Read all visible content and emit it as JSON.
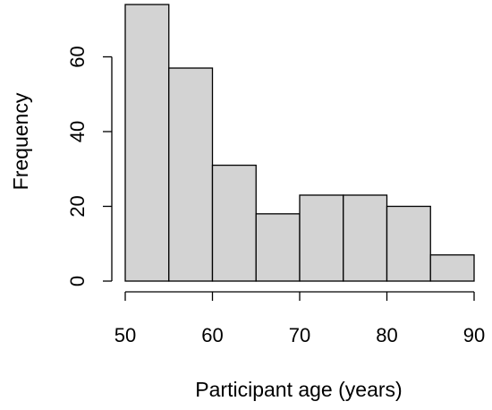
{
  "chart_data": {
    "type": "bar",
    "subtype": "histogram",
    "title": "",
    "xlabel": "Participant age (years)",
    "ylabel": "Frequency",
    "bins": [
      {
        "from": 50,
        "to": 55,
        "value": 74
      },
      {
        "from": 55,
        "to": 60,
        "value": 57
      },
      {
        "from": 60,
        "to": 65,
        "value": 31
      },
      {
        "from": 65,
        "to": 70,
        "value": 18
      },
      {
        "from": 70,
        "to": 75,
        "value": 23
      },
      {
        "from": 75,
        "to": 80,
        "value": 23
      },
      {
        "from": 80,
        "to": 85,
        "value": 20
      },
      {
        "from": 85,
        "to": 90,
        "value": 7
      }
    ],
    "xlim": [
      50,
      90
    ],
    "ylim": [
      0,
      75
    ],
    "x_ticks": [
      50,
      60,
      70,
      80,
      90
    ],
    "y_ticks": [
      0,
      20,
      40,
      60
    ],
    "bar_color": "#d3d3d3",
    "edge_color": "#000000",
    "grid": false,
    "legend": "none"
  }
}
